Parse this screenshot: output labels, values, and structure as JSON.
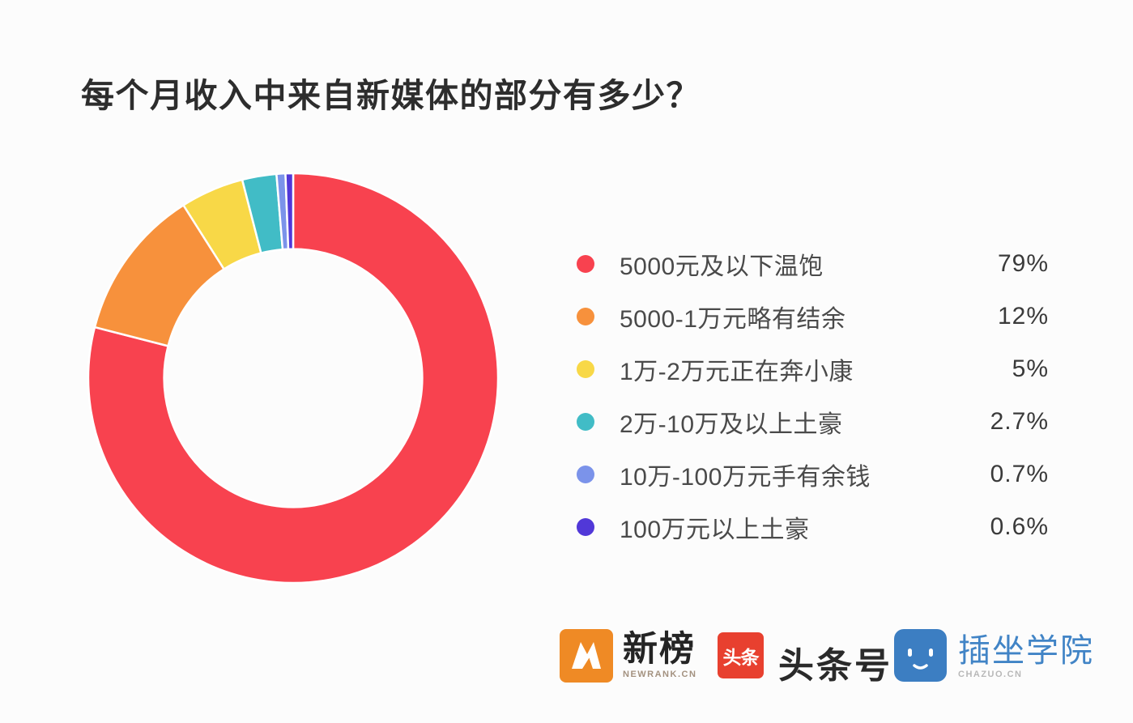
{
  "title": "每个月收入中来自新媒体的部分有多少？",
  "chart_data": {
    "type": "pie",
    "variant": "donut",
    "title": "每个月收入中来自新媒体的部分有多少？",
    "categories": [
      "5000元及以下温饱",
      "5000-1万元略有结余",
      "1万-2万元正在奔小康",
      "2万-10万及以上土豪",
      "10万-100万元手有余钱",
      "100万元以上土豪"
    ],
    "values": [
      79,
      12,
      5,
      2.7,
      0.7,
      0.6
    ],
    "value_labels": [
      "79%",
      "12%",
      "5%",
      "2.7%",
      "0.7%",
      "0.6%"
    ],
    "colors": [
      "#f8424f",
      "#f7913c",
      "#f8d847",
      "#41bcc6",
      "#7b93ea",
      "#5138d8"
    ],
    "legend_position": "right",
    "start_angle_deg": 0,
    "direction": "clockwise",
    "inner_radius_ratio": 0.63,
    "slice_gap_color": "#ffffff"
  },
  "footer": {
    "logos": [
      {
        "id": "newrank",
        "wordmark": "新榜",
        "tagline": "NEWRANK.CN",
        "icon_color": "#ef8a25"
      },
      {
        "id": "toutiao",
        "wordmark": "头条号",
        "icon_text": "头条",
        "icon_color": "#e8402f"
      },
      {
        "id": "chazuo",
        "wordmark": "插坐学院",
        "tagline": "CHAZUO.CN",
        "icon_color": "#3c7ec2"
      }
    ]
  }
}
